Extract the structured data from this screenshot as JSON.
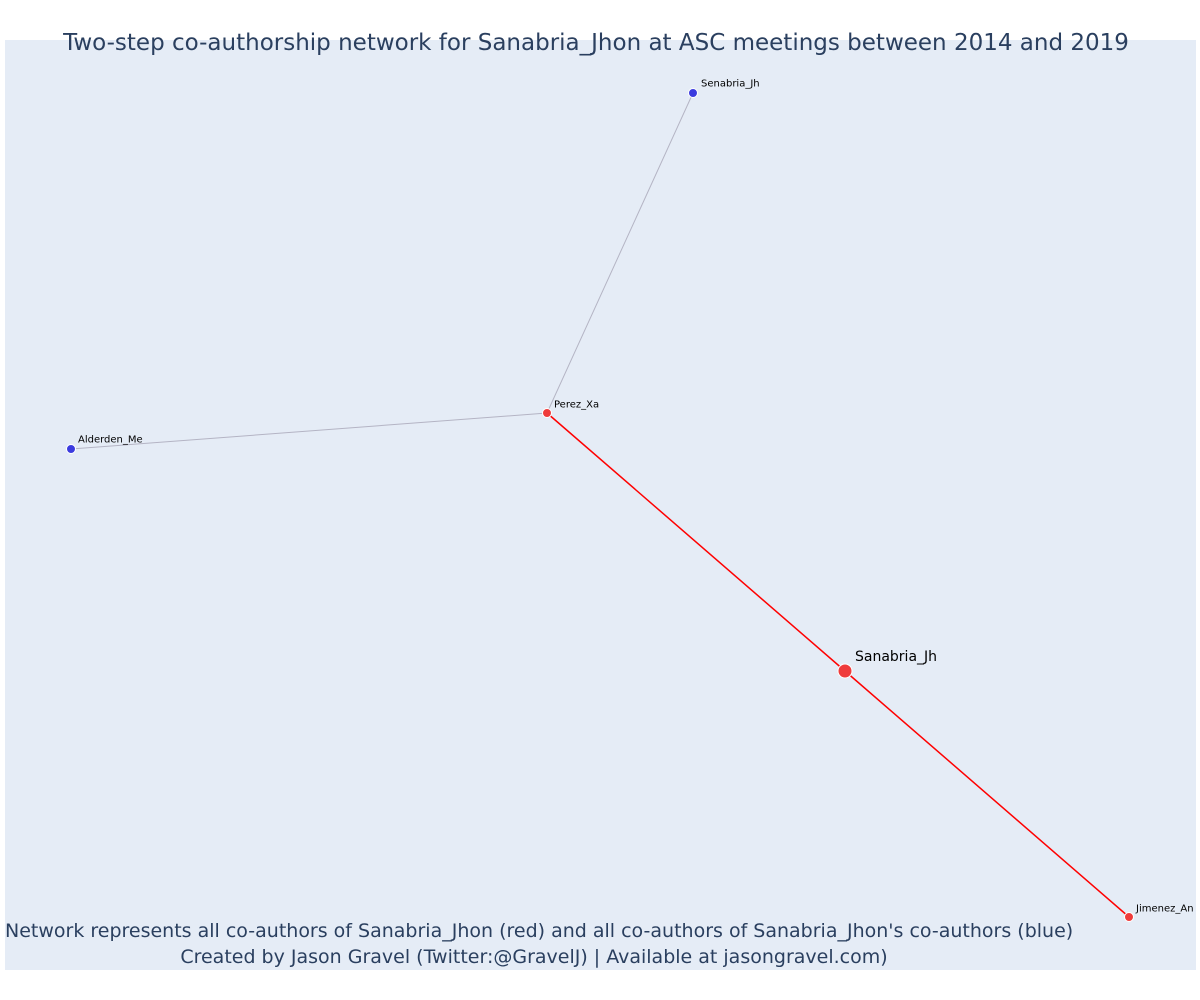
{
  "title": "Two-step co-authorship network for Sanabria_Jhon at ASC meetings between 2014 and 2019",
  "caption": {
    "line1": "Network represents all co-authors of Sanabria_Jhon (red) and all co-authors of Sanabria_Jhon's co-authors (blue)",
    "line2": "Created by Jason Gravel (Twitter:@GravelJ) | Available at jasongravel.com)"
  },
  "colors": {
    "background": "#e5ecf6",
    "first_degree_node": "#ef3b3b",
    "second_degree_node": "#3b3bdf",
    "first_degree_edge": "#ff0000",
    "second_degree_edge": "#b4b4c4",
    "title": "#2a3f5f"
  },
  "network": {
    "nodes": [
      {
        "id": "senabria_jh",
        "label": "Senabria_Jh",
        "group": "co-author-of-co-author",
        "color": "#3b3bdf"
      },
      {
        "id": "perez_xa",
        "label": "Perez_Xa",
        "group": "co-author",
        "color": "#ef3b3b"
      },
      {
        "id": "alderden_me",
        "label": "Alderden_Me",
        "group": "co-author-of-co-author",
        "color": "#3b3bdf"
      },
      {
        "id": "sanabria_jh",
        "label": "Sanabria_Jh",
        "group": "focal",
        "color": "#ef3b3b"
      },
      {
        "id": "jimenez_an",
        "label": "Jimenez_An",
        "group": "co-author",
        "color": "#ef3b3b"
      }
    ],
    "edges": [
      {
        "source": "perez_xa",
        "target": "senabria_jh",
        "type": "second-degree"
      },
      {
        "source": "perez_xa",
        "target": "alderden_me",
        "type": "second-degree"
      },
      {
        "source": "sanabria_jh",
        "target": "perez_xa",
        "type": "first-degree"
      },
      {
        "source": "sanabria_jh",
        "target": "jimenez_an",
        "type": "first-degree"
      }
    ]
  }
}
